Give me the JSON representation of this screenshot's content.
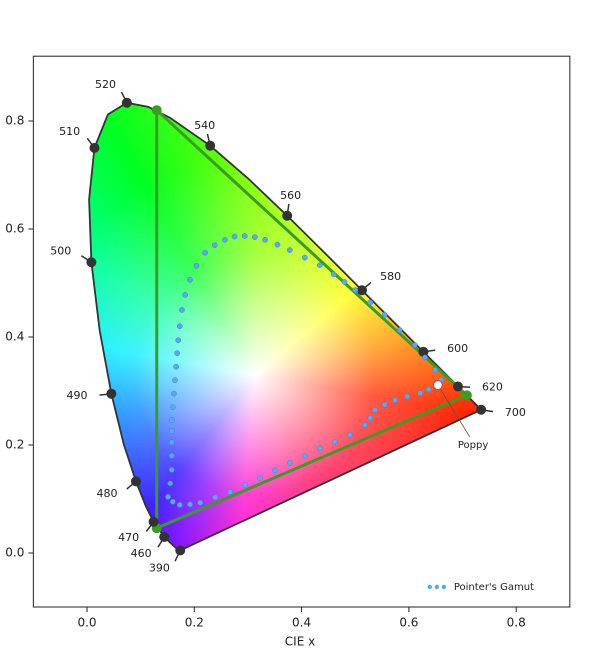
{
  "chart_data": {
    "type": "chromaticity",
    "xlabel": "CIE x",
    "xlim": [
      -0.1,
      0.9
    ],
    "ylim": [
      -0.1,
      0.92
    ],
    "xticks": [
      {
        "value": 0,
        "label": "0.0"
      },
      0.2,
      0.4,
      0.6,
      0.8
    ],
    "yticks": [
      {
        "value": 0,
        "label": "0.0"
      },
      0.2,
      0.4,
      0.6,
      0.8
    ],
    "legend": "lower right",
    "locus": {
      "x": [
        0.1741,
        0.1738,
        0.1733,
        0.1726,
        0.1714,
        0.1689,
        0.1644,
        0.1566,
        0.144,
        0.1241,
        0.1096,
        0.0913,
        0.0687,
        0.0454,
        0.0235,
        0.0082,
        0.0039,
        0.0139,
        0.0389,
        0.0743,
        0.1142,
        0.1547,
        0.2296,
        0.3016,
        0.3731,
        0.4441,
        0.5125,
        0.5752,
        0.627,
        0.6658,
        0.6915,
        0.719,
        0.7347
      ],
      "y": [
        0.005,
        0.0049,
        0.0048,
        0.0048,
        0.0051,
        0.0069,
        0.0109,
        0.0177,
        0.0297,
        0.0578,
        0.0868,
        0.1327,
        0.2007,
        0.295,
        0.4127,
        0.5384,
        0.6548,
        0.7502,
        0.812,
        0.8338,
        0.8262,
        0.8059,
        0.7543,
        0.6923,
        0.6245,
        0.5547,
        0.4866,
        0.4242,
        0.3725,
        0.334,
        0.3083,
        0.2809,
        0.2653
      ],
      "color": "#333333"
    },
    "wavelengths": {
      "labels": [
        390,
        460,
        470,
        480,
        490,
        500,
        510,
        520,
        540,
        560,
        580,
        600,
        620,
        700
      ],
      "x": [
        0.1738,
        0.144,
        0.1241,
        0.0913,
        0.0454,
        0.0082,
        0.0139,
        0.0743,
        0.2296,
        0.3731,
        0.5125,
        0.627,
        0.6915,
        0.7347
      ],
      "y": [
        0.0049,
        0.0297,
        0.0578,
        0.1327,
        0.295,
        0.5384,
        0.7502,
        0.8338,
        0.7543,
        0.6245,
        0.4866,
        0.3725,
        0.3083,
        0.2653
      ],
      "color": "#333333"
    },
    "triangle": {
      "x": [
        0.13,
        0.708,
        0.13
      ],
      "y": [
        0.82,
        0.292,
        0.046
      ],
      "color": "#3a9d23"
    },
    "series": [
      {
        "name": "Pointer's Gamut",
        "color": "#5aa8f0",
        "x": [
          0.151,
          0.155,
          0.158,
          0.158,
          0.158,
          0.158,
          0.158,
          0.16,
          0.162,
          0.164,
          0.166,
          0.168,
          0.17,
          0.173,
          0.177,
          0.183,
          0.192,
          0.204,
          0.22,
          0.238,
          0.257,
          0.275,
          0.294,
          0.313,
          0.332,
          0.355,
          0.378,
          0.406,
          0.434,
          0.46,
          0.48,
          0.5,
          0.528,
          0.555,
          0.583,
          0.611,
          0.63,
          0.649,
          0.66,
          0.654,
          0.637,
          0.621,
          0.597,
          0.574,
          0.555,
          0.537,
          0.528,
          0.518,
          0.49,
          0.462,
          0.434,
          0.406,
          0.378,
          0.35,
          0.322,
          0.295,
          0.267,
          0.239,
          0.211,
          0.192,
          0.173,
          0.16
        ],
        "y": [
          0.104,
          0.129,
          0.154,
          0.18,
          0.205,
          0.226,
          0.246,
          0.27,
          0.295,
          0.32,
          0.345,
          0.37,
          0.394,
          0.42,
          0.45,
          0.478,
          0.506,
          0.532,
          0.556,
          0.57,
          0.58,
          0.586,
          0.587,
          0.585,
          0.58,
          0.571,
          0.561,
          0.547,
          0.533,
          0.516,
          0.502,
          0.487,
          0.464,
          0.441,
          0.413,
          0.385,
          0.362,
          0.339,
          0.32,
          0.311,
          0.303,
          0.296,
          0.29,
          0.283,
          0.275,
          0.265,
          0.25,
          0.237,
          0.219,
          0.206,
          0.194,
          0.18,
          0.167,
          0.153,
          0.139,
          0.126,
          0.113,
          0.103,
          0.093,
          0.09,
          0.089,
          0.095
        ]
      }
    ],
    "annotation": {
      "text": "Poppy",
      "x": 0.654,
      "y": 0.311,
      "color": "#e04040"
    }
  }
}
